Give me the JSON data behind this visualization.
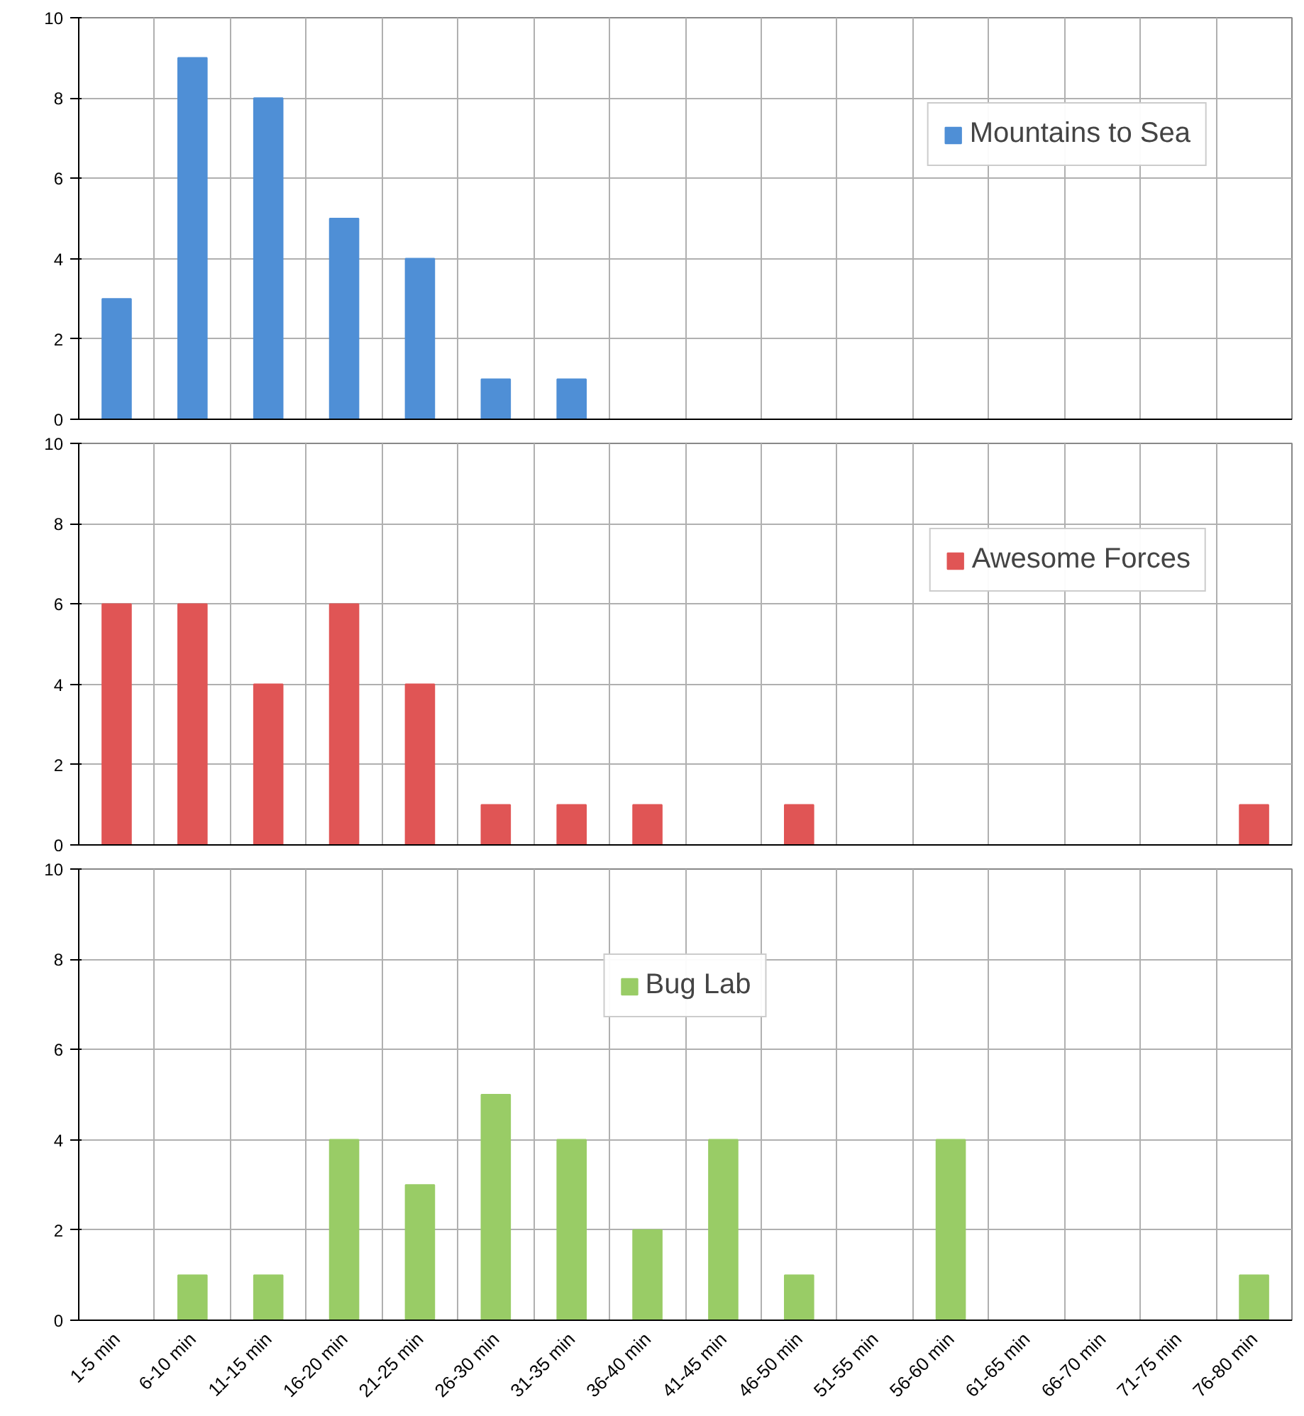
{
  "chart_data": [
    {
      "type": "bar",
      "categories": [
        null,
        null,
        null,
        null,
        null,
        null,
        null,
        null,
        null,
        null,
        null,
        null,
        null,
        null,
        null,
        null
      ],
      "series": [
        {
          "name": "Mountains to Sea",
          "color": "#4f8fd6",
          "values": [
            3,
            9,
            8,
            5,
            4,
            1,
            1,
            0,
            0,
            0,
            0,
            0,
            0,
            0,
            0,
            0
          ]
        }
      ],
      "ylim": [
        0,
        10
      ],
      "yticks": [
        0,
        2,
        4,
        6,
        8,
        10
      ],
      "grid": true,
      "legend": "top right",
      "tick_labels": "y"
    },
    {
      "type": "bar",
      "categories": [
        null,
        null,
        null,
        null,
        null,
        null,
        null,
        null,
        null,
        null,
        null,
        null,
        null,
        null,
        null,
        null
      ],
      "series": [
        {
          "name": "Awesome Forces",
          "color": "#e05555",
          "values": [
            6,
            6,
            4,
            6,
            4,
            1,
            1,
            1,
            0,
            1,
            0,
            0,
            0,
            0,
            0,
            1
          ]
        }
      ],
      "ylim": [
        0,
        10
      ],
      "yticks": [
        0,
        2,
        4,
        6,
        8,
        10
      ],
      "grid": true,
      "legend": "top right",
      "tick_labels": "y"
    },
    {
      "type": "bar",
      "categories": [
        "1-5 min",
        "6-10 min",
        "11-15 min",
        "16-20 min",
        "21-25 min",
        "26-30 min",
        "31-35 min",
        "36-40 min",
        "41-45 min",
        "46-50 min",
        "51-55 min",
        "56-60 min",
        "61-65 min",
        "66-70 min",
        "71-75 min",
        "76-80 min"
      ],
      "series": [
        {
          "name": "Bug Lab",
          "color": "#99cc66",
          "values": [
            0,
            1,
            1,
            4,
            3,
            5,
            4,
            2,
            4,
            1,
            0,
            4,
            0,
            0,
            0,
            1
          ]
        }
      ],
      "ylim": [
        0,
        10
      ],
      "yticks": [
        0,
        2,
        4,
        6,
        8,
        10
      ],
      "grid": true,
      "legend": "top"
    }
  ]
}
